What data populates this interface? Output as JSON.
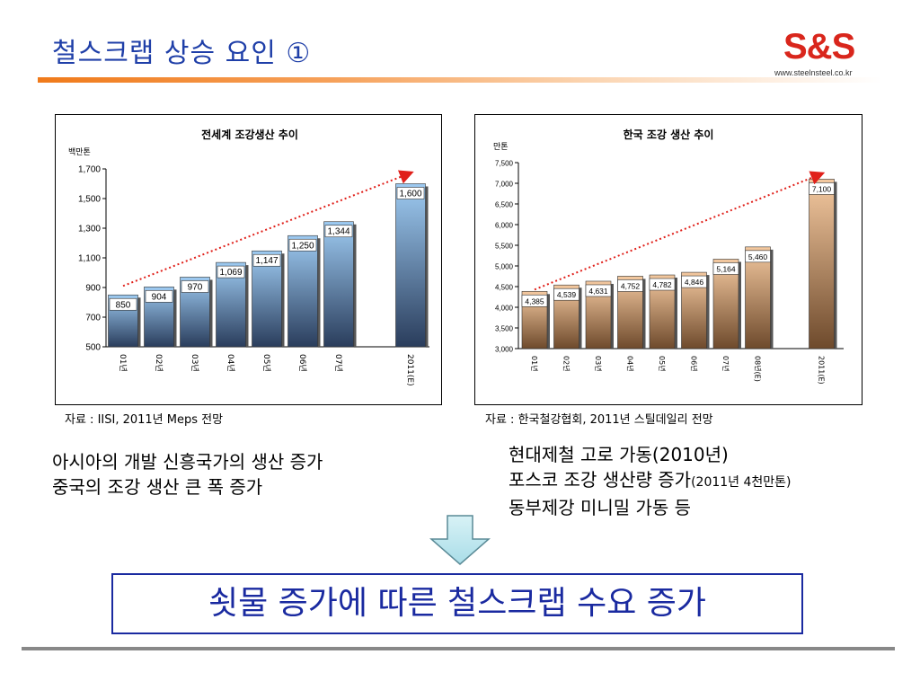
{
  "slide": {
    "title": "철스크랩 상승 요인 ①",
    "logo_text": "S&S",
    "logo_url": "www.steelnsteel.co.kr",
    "left_source": "자료 : IISI, 2011년 Meps 전망",
    "right_source": "자료 : 한국철강협회, 2011년 스틸데일리 전망",
    "left_bullets": [
      "아시아의 개발 신흥국가의 생산 증가",
      "중국의 조강 생산 큰 폭 증가"
    ],
    "right_bullets": [
      {
        "main": "현대제철 고로 가동(2010년)",
        "small": ""
      },
      {
        "main": "포스코 조강 생산량 증가",
        "small": "(2011년 4천만톤)"
      },
      {
        "main": "동부제강 미니밀 가동 등",
        "small": ""
      }
    ],
    "conclusion": "쇳물 증가에 따른 철스크랩 수요 증가",
    "colors": {
      "title": "#1f3fa8",
      "accent_bar": "#f07a1a",
      "logo": "#d9261c",
      "conclusion": "#1a2aa0",
      "trend_arrow": "#e0201a"
    }
  },
  "chart_data": [
    {
      "type": "bar",
      "title": "전세계 조강생산 추이",
      "ylabel": "백만톤",
      "categories": [
        "01년",
        "02년",
        "03년",
        "04년",
        "05년",
        "06년",
        "07년",
        "2011(E)"
      ],
      "values": [
        850,
        904,
        970,
        1069,
        1147,
        1250,
        1344,
        1600
      ],
      "value_labels": [
        "850",
        "904",
        "970",
        "1,069",
        "1,147",
        "1,250",
        "1,344",
        "1,600"
      ],
      "ylim": [
        500,
        1700
      ],
      "yticks": [
        500,
        700,
        900,
        1100,
        1300,
        1500,
        1700
      ],
      "ytick_labels": [
        "500",
        "700",
        "900",
        "1,100",
        "1,300",
        "1,500",
        "1,700"
      ],
      "gap_before_last": true,
      "bar_color_top": "#9ecbf2",
      "bar_color_bottom": "#2a3d5c",
      "grid": false
    },
    {
      "type": "bar",
      "title": "한국 조강 생산 추이",
      "ylabel": "만톤",
      "categories": [
        "01년",
        "02년",
        "03년",
        "04년",
        "05년",
        "06년",
        "07년",
        "08년(E)",
        "2011(E)"
      ],
      "values": [
        4385,
        4539,
        4631,
        4752,
        4782,
        4846,
        5164,
        5460,
        7100
      ],
      "value_labels": [
        "4,385",
        "4,539",
        "4,631",
        "4,752",
        "4,782",
        "4,846",
        "5,164",
        "5,460",
        "7,100"
      ],
      "ylim": [
        3000,
        7500
      ],
      "yticks": [
        3000,
        3500,
        4000,
        4500,
        5000,
        5500,
        6000,
        6500,
        7000,
        7500
      ],
      "ytick_labels": [
        "3,000",
        "3,500",
        "4,000",
        "4,500",
        "5,000",
        "5,500",
        "6,000",
        "6,500",
        "7,000",
        "7,500"
      ],
      "gap_before_last": true,
      "bar_color_top": "#f4c9a0",
      "bar_color_bottom": "#6e4a2c",
      "grid": false
    }
  ]
}
